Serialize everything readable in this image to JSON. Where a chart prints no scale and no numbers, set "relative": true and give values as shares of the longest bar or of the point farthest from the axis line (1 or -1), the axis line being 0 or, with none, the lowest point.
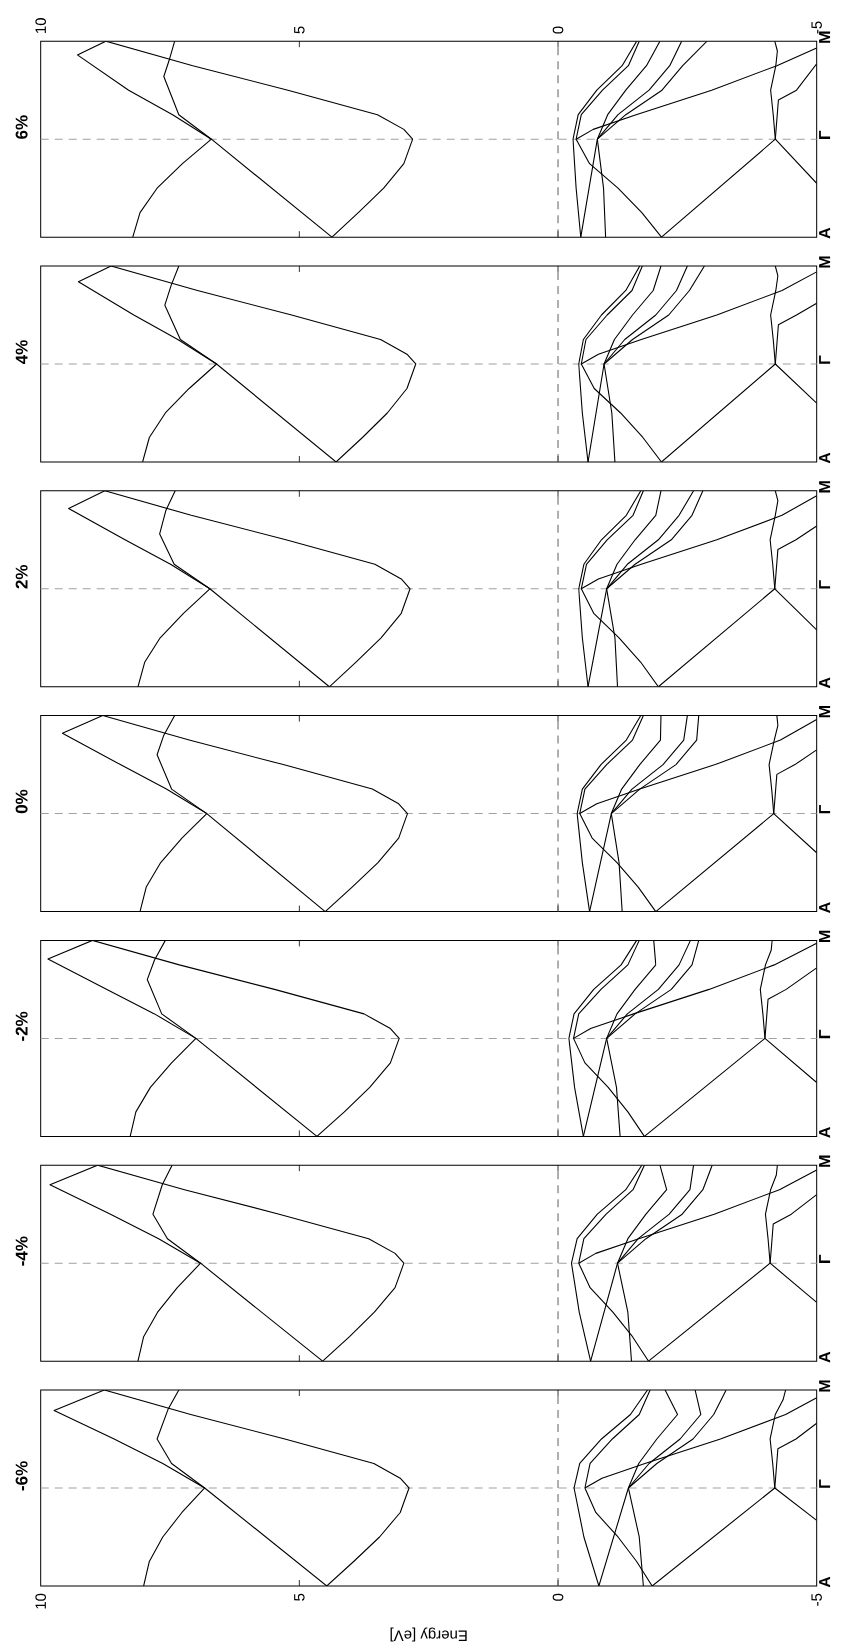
{
  "chart_data": [
    {
      "type": "line",
      "relative": true,
      "title": "6%",
      "tick_labels": "x",
      "color": "#000000",
      "xlim": [
        10,
        -5
      ],
      "xticks": [
        10,
        5,
        0,
        -5
      ],
      "annotations": [
        "A",
        "Γ",
        "M"
      ],
      "ref_lines": [
        {
          "axis": "y",
          "value": 0.5,
          "color": "#a0a0a0",
          "line_style": "dashed"
        },
        {
          "axis": "x",
          "value": 0,
          "color": "#606060",
          "line_style": "dashed"
        }
      ],
      "series": [
        {
          "values": [
            0,
            0.125,
            0.25,
            0.375,
            0.5,
            0.55,
            0.625,
            0.75,
            0.875,
            1
          ],
          "x": [
            4.37,
            3.86,
            3.37,
            2.98,
            2.81,
            2.98,
            3.49,
            5.22,
            7.06,
            8.74
          ]
        },
        {
          "values": [
            0,
            0.5,
            0.625,
            0.75,
            0.93,
            1
          ],
          "x": [
            4.37,
            6.7,
            7.45,
            8.3,
            9.29,
            8.74
          ]
        },
        {
          "values": [
            0,
            0.125,
            0.25,
            0.375,
            0.5,
            0.625,
            0.82,
            0.9,
            1
          ],
          "x": [
            8.22,
            8.08,
            7.75,
            7.26,
            6.7,
            7.33,
            7.62,
            7.52,
            7.41
          ]
        },
        {
          "values": [
            0,
            0.25,
            0.5,
            0.625,
            0.75,
            0.875,
            1
          ],
          "x": [
            -0.44,
            -0.35,
            -0.29,
            -0.39,
            -0.75,
            -1.24,
            -1.52
          ]
        },
        {
          "values": [
            0,
            0.125,
            0.25,
            0.375,
            0.5,
            0.625,
            0.75,
            0.875,
            1
          ],
          "x": [
            -2.0,
            -1.62,
            -1.16,
            -0.61,
            -0.35,
            -0.45,
            -0.86,
            -1.36,
            -1.57
          ]
        },
        {
          "values": [
            0,
            0.5,
            0.625,
            0.75,
            0.875,
            1
          ],
          "x": [
            -0.44,
            -0.76,
            -0.96,
            -1.31,
            -1.71,
            -1.97
          ]
        },
        {
          "values": [
            0,
            0.25,
            0.5,
            0.625,
            0.75,
            0.875,
            1
          ],
          "x": [
            -0.92,
            -0.88,
            -0.76,
            -1.16,
            -1.76,
            -2.16,
            -2.39
          ]
        },
        {
          "values": [
            0.5,
            0.55,
            0.625,
            0.75,
            0.875,
            0.965
          ],
          "x": [
            -0.35,
            -0.68,
            -1.51,
            -2.97,
            -4.23,
            -5
          ]
        },
        {
          "values": [
            0.5,
            0.625,
            0.75,
            0.875,
            1
          ],
          "x": [
            -0.76,
            -1.31,
            -2.01,
            -2.41,
            -2.88
          ]
        },
        {
          "values": [
            0,
            0.5,
            0.625,
            0.75,
            0.875,
            0.95,
            1
          ],
          "x": [
            -2.0,
            -4.2,
            -4.16,
            -4.11,
            -4.21,
            -4.24,
            -4.19
          ]
        },
        {
          "values": [
            0.275,
            0.5,
            0.7,
            0.75,
            0.885
          ],
          "x": [
            -5,
            -4.2,
            -4.26,
            -4.61,
            -5
          ]
        }
      ]
    },
    {
      "type": "line",
      "relative": true,
      "title": "4%",
      "tick_labels": false,
      "color": "#000000",
      "xlim": [
        10,
        -5
      ],
      "xticks": [
        10,
        5,
        0,
        -5
      ],
      "annotations": [
        "A",
        "Γ",
        "M"
      ],
      "ref_lines": [
        {
          "axis": "y",
          "value": 0.5,
          "color": "#a0a0a0",
          "line_style": "dashed"
        },
        {
          "axis": "x",
          "value": 0,
          "color": "#606060",
          "line_style": "dashed"
        }
      ],
      "series": [
        {
          "values": [
            0,
            0.125,
            0.25,
            0.375,
            0.5,
            0.55,
            0.625,
            0.75,
            0.875,
            1
          ],
          "x": [
            4.29,
            3.78,
            3.3,
            2.92,
            2.75,
            2.92,
            3.43,
            5.15,
            6.97,
            8.64
          ]
        },
        {
          "values": [
            0,
            0.5,
            0.625,
            0.75,
            0.92,
            1
          ],
          "x": [
            4.29,
            6.6,
            7.35,
            8.2,
            9.27,
            8.64
          ]
        },
        {
          "values": [
            0,
            0.125,
            0.25,
            0.375,
            0.5,
            0.625,
            0.8,
            0.9,
            1
          ],
          "x": [
            8.03,
            7.9,
            7.59,
            7.13,
            6.6,
            7.3,
            7.6,
            7.48,
            7.33
          ]
        },
        {
          "values": [
            0,
            0.25,
            0.5,
            0.625,
            0.75,
            0.875,
            1
          ],
          "x": [
            -0.58,
            -0.47,
            -0.4,
            -0.49,
            -0.84,
            -1.31,
            -1.58
          ]
        },
        {
          "values": [
            0,
            0.125,
            0.25,
            0.375,
            0.5,
            0.625,
            0.75,
            0.875,
            1
          ],
          "x": [
            -2.0,
            -1.64,
            -1.21,
            -0.7,
            -0.45,
            -0.54,
            -0.95,
            -1.43,
            -1.63
          ]
        },
        {
          "values": [
            0,
            0.5,
            0.625,
            0.75,
            0.875,
            1
          ],
          "x": [
            -0.58,
            -0.89,
            -1.09,
            -1.44,
            -1.84,
            -1.99
          ]
        },
        {
          "values": [
            0,
            0.25,
            0.5,
            0.625,
            0.75,
            0.875,
            1
          ],
          "x": [
            -1.1,
            -1.04,
            -0.89,
            -1.29,
            -1.89,
            -2.29,
            -2.5
          ]
        },
        {
          "values": [
            0.5,
            0.55,
            0.625,
            0.75,
            0.875,
            0.97
          ],
          "x": [
            -0.45,
            -0.78,
            -1.61,
            -3.07,
            -4.33,
            -5
          ]
        },
        {
          "values": [
            0.5,
            0.625,
            0.75,
            0.875,
            1
          ],
          "x": [
            -0.89,
            -1.44,
            -2.14,
            -2.54,
            -2.83
          ]
        },
        {
          "values": [
            0,
            0.5,
            0.625,
            0.75,
            0.875,
            0.95,
            1
          ],
          "x": [
            -2.0,
            -4.2,
            -4.16,
            -4.11,
            -4.21,
            -4.25,
            -4.2
          ]
        },
        {
          "values": [
            0.3,
            0.5,
            0.7,
            0.75,
            0.81
          ],
          "x": [
            -5,
            -4.2,
            -4.26,
            -4.61,
            -5
          ]
        }
      ]
    },
    {
      "type": "line",
      "relative": true,
      "title": "2%",
      "tick_labels": false,
      "color": "#000000",
      "xlim": [
        10,
        -5
      ],
      "xticks": [
        10,
        5,
        0,
        -5
      ],
      "annotations": [
        "A",
        "Γ",
        "M"
      ],
      "ref_lines": [
        {
          "axis": "y",
          "value": 0.5,
          "color": "#a0a0a0",
          "line_style": "dashed"
        },
        {
          "axis": "x",
          "value": 0,
          "color": "#606060",
          "line_style": "dashed"
        }
      ],
      "series": [
        {
          "values": [
            0,
            0.125,
            0.25,
            0.375,
            0.5,
            0.55,
            0.625,
            0.75,
            0.875,
            1
          ],
          "x": [
            4.42,
            3.91,
            3.42,
            3.03,
            2.86,
            3.03,
            3.54,
            5.26,
            7.09,
            8.76
          ]
        },
        {
          "values": [
            0,
            0.5,
            0.625,
            0.75,
            0.91,
            1
          ],
          "x": [
            4.42,
            6.73,
            7.49,
            8.37,
            9.46,
            8.76
          ]
        },
        {
          "values": [
            0,
            0.125,
            0.25,
            0.375,
            0.5,
            0.625,
            0.78,
            0.9,
            1
          ],
          "x": [
            8.12,
            7.99,
            7.69,
            7.24,
            6.73,
            7.42,
            7.7,
            7.58,
            7.4
          ]
        },
        {
          "values": [
            0,
            0.25,
            0.5,
            0.625,
            0.75,
            0.875,
            1
          ],
          "x": [
            -0.58,
            -0.47,
            -0.4,
            -0.5,
            -0.84,
            -1.32,
            -1.6
          ]
        },
        {
          "values": [
            0,
            0.125,
            0.25,
            0.375,
            0.5,
            0.625,
            0.75,
            0.875,
            1
          ],
          "x": [
            -1.94,
            -1.6,
            -1.18,
            -0.69,
            -0.45,
            -0.55,
            -0.95,
            -1.45,
            -1.65
          ]
        },
        {
          "values": [
            0,
            0.5,
            0.625,
            0.75,
            0.875,
            1
          ],
          "x": [
            -0.58,
            -0.94,
            -1.14,
            -1.49,
            -1.89,
            -1.99
          ]
        },
        {
          "values": [
            0,
            0.25,
            0.5,
            0.625,
            0.75,
            0.875,
            1
          ],
          "x": [
            -1.15,
            -1.1,
            -0.94,
            -1.34,
            -1.94,
            -2.34,
            -2.62
          ]
        },
        {
          "values": [
            0.5,
            0.55,
            0.625,
            0.75,
            0.875,
            0.975
          ],
          "x": [
            -0.45,
            -0.78,
            -1.61,
            -3.07,
            -4.33,
            -5
          ]
        },
        {
          "values": [
            0.5,
            0.625,
            0.75,
            0.875,
            1
          ],
          "x": [
            -0.94,
            -1.49,
            -2.19,
            -2.59,
            -2.8
          ]
        },
        {
          "values": [
            0,
            0.5,
            0.625,
            0.75,
            0.875,
            0.95,
            1
          ],
          "x": [
            -1.94,
            -4.19,
            -4.15,
            -4.1,
            -4.2,
            -4.25,
            -4.2
          ]
        },
        {
          "values": [
            0.29,
            0.5,
            0.7,
            0.75,
            0.82
          ],
          "x": [
            -5,
            -4.19,
            -4.25,
            -4.6,
            -5
          ]
        }
      ]
    },
    {
      "type": "line",
      "relative": true,
      "title": "0%",
      "tick_labels": false,
      "color": "#000000",
      "xlim": [
        10,
        -5
      ],
      "xticks": [
        10,
        5,
        0,
        -5
      ],
      "annotations": [
        "A",
        "Γ",
        "M"
      ],
      "ref_lines": [
        {
          "axis": "y",
          "value": 0.5,
          "color": "#a0a0a0",
          "line_style": "dashed"
        },
        {
          "axis": "x",
          "value": 0,
          "color": "#606060",
          "line_style": "dashed"
        }
      ],
      "series": [
        {
          "values": [
            0,
            0.125,
            0.25,
            0.375,
            0.5,
            0.55,
            0.625,
            0.75,
            0.875,
            1
          ],
          "x": [
            4.5,
            3.98,
            3.48,
            3.08,
            2.91,
            3.08,
            3.59,
            5.31,
            7.13,
            8.8
          ]
        },
        {
          "values": [
            0,
            0.5,
            0.625,
            0.75,
            0.91,
            1
          ],
          "x": [
            4.5,
            6.79,
            7.57,
            8.46,
            9.58,
            8.8
          ]
        },
        {
          "values": [
            0,
            0.125,
            0.25,
            0.375,
            0.5,
            0.625,
            0.8,
            0.9,
            1
          ],
          "x": [
            8.08,
            7.96,
            7.68,
            7.27,
            6.79,
            7.47,
            7.75,
            7.62,
            7.41
          ]
        },
        {
          "values": [
            0,
            0.25,
            0.5,
            0.625,
            0.75,
            0.875,
            1
          ],
          "x": [
            -0.61,
            -0.47,
            -0.37,
            -0.47,
            -0.83,
            -1.32,
            -1.6
          ]
        },
        {
          "values": [
            0,
            0.125,
            0.25,
            0.375,
            0.5,
            0.625,
            0.75,
            0.875,
            1
          ],
          "x": [
            -1.89,
            -1.55,
            -1.14,
            -0.66,
            -0.42,
            -0.52,
            -0.94,
            -1.44,
            -1.65
          ]
        },
        {
          "values": [
            0,
            0.5,
            0.625,
            0.75,
            0.875,
            1
          ],
          "x": [
            -0.61,
            -1.03,
            -1.23,
            -1.58,
            -1.98,
            -1.99
          ]
        },
        {
          "values": [
            0,
            0.25,
            0.5,
            0.625,
            0.75,
            0.875,
            1
          ],
          "x": [
            -1.24,
            -1.18,
            -1.03,
            -1.43,
            -2.03,
            -2.43,
            -2.5
          ]
        },
        {
          "values": [
            0.5,
            0.55,
            0.625,
            0.75,
            0.875,
            0.98
          ],
          "x": [
            -0.42,
            -0.75,
            -1.58,
            -3.04,
            -4.3,
            -5
          ]
        },
        {
          "values": [
            0.5,
            0.625,
            0.75,
            0.875,
            1
          ],
          "x": [
            -1.03,
            -1.58,
            -2.28,
            -2.68,
            -2.72
          ]
        },
        {
          "values": [
            0,
            0.5,
            0.625,
            0.75,
            0.875,
            0.95,
            1
          ],
          "x": [
            -1.89,
            -4.17,
            -4.13,
            -4.08,
            -4.18,
            -4.25,
            -4.23
          ]
        },
        {
          "values": [
            0.3,
            0.5,
            0.7,
            0.75,
            0.825
          ],
          "x": [
            -5,
            -4.17,
            -4.23,
            -4.58,
            -5
          ]
        }
      ]
    },
    {
      "type": "line",
      "relative": true,
      "title": "-2%",
      "tick_labels": false,
      "color": "#000000",
      "xlim": [
        10,
        -5
      ],
      "xticks": [
        10,
        5,
        0,
        -5
      ],
      "annotations": [
        "A",
        "Γ",
        "M"
      ],
      "ref_lines": [
        {
          "axis": "y",
          "value": 0.5,
          "color": "#a0a0a0",
          "line_style": "dashed"
        },
        {
          "axis": "x",
          "value": 0,
          "color": "#606060",
          "line_style": "dashed"
        }
      ],
      "series": [
        {
          "values": [
            0,
            0.125,
            0.25,
            0.375,
            0.5,
            0.55,
            0.625,
            0.75,
            0.875,
            1
          ],
          "x": [
            4.66,
            4.13,
            3.64,
            3.24,
            3.07,
            3.24,
            3.75,
            5.48,
            7.32,
            9.0
          ]
        },
        {
          "values": [
            0,
            0.5,
            0.625,
            0.75,
            0.905,
            1
          ],
          "x": [
            4.66,
            7.0,
            7.8,
            8.72,
            9.86,
            9.0
          ]
        },
        {
          "values": [
            0,
            0.125,
            0.25,
            0.375,
            0.5,
            0.625,
            0.8,
            0.9,
            1
          ],
          "x": [
            8.27,
            8.16,
            7.88,
            7.47,
            7.0,
            7.66,
            7.94,
            7.8,
            7.59
          ]
        },
        {
          "values": [
            0,
            0.25,
            0.5,
            0.625,
            0.75,
            0.875,
            1
          ],
          "x": [
            -0.49,
            -0.32,
            -0.21,
            -0.31,
            -0.69,
            -1.22,
            -1.52
          ]
        },
        {
          "values": [
            0,
            0.125,
            0.25,
            0.375,
            0.5,
            0.625,
            0.75,
            0.875,
            1
          ],
          "x": [
            -1.67,
            -1.35,
            -0.97,
            -0.52,
            -0.3,
            -0.4,
            -0.83,
            -1.35,
            -1.57
          ]
        },
        {
          "values": [
            0,
            0.5,
            0.625,
            0.75,
            0.875,
            1
          ],
          "x": [
            -0.49,
            -0.94,
            -1.14,
            -1.49,
            -1.89,
            -1.85
          ]
        },
        {
          "values": [
            0,
            0.25,
            0.5,
            0.625,
            0.75,
            0.875,
            1
          ],
          "x": [
            -1.2,
            -1.13,
            -0.94,
            -1.34,
            -1.94,
            -2.34,
            -2.56
          ]
        },
        {
          "values": [
            0.5,
            0.55,
            0.625,
            0.75,
            0.875,
            0.985
          ],
          "x": [
            -0.3,
            -0.63,
            -1.46,
            -2.92,
            -4.18,
            -5
          ]
        },
        {
          "values": [
            0.5,
            0.625,
            0.75,
            0.875,
            1
          ],
          "x": [
            -0.94,
            -1.49,
            -2.19,
            -2.59,
            -2.72
          ]
        },
        {
          "values": [
            0,
            0.5,
            0.625,
            0.75,
            0.875,
            0.95,
            1
          ],
          "x": [
            -1.67,
            -4.0,
            -3.96,
            -3.91,
            -4.01,
            -4.12,
            -4.14
          ]
        },
        {
          "values": [
            0.275,
            0.5,
            0.7,
            0.75,
            0.86
          ],
          "x": [
            -5,
            -4.0,
            -4.06,
            -4.41,
            -5
          ]
        }
      ]
    },
    {
      "type": "line",
      "relative": true,
      "title": "-4%",
      "tick_labels": false,
      "color": "#000000",
      "xlim": [
        10,
        -5
      ],
      "xticks": [
        10,
        5,
        0,
        -5
      ],
      "annotations": [
        "A",
        "Γ",
        "M"
      ],
      "ref_lines": [
        {
          "axis": "y",
          "value": 0.5,
          "color": "#a0a0a0",
          "line_style": "dashed"
        },
        {
          "axis": "x",
          "value": 0,
          "color": "#606060",
          "line_style": "dashed"
        }
      ],
      "series": [
        {
          "values": [
            0,
            0.125,
            0.25,
            0.375,
            0.5,
            0.55,
            0.625,
            0.75,
            0.875,
            1
          ],
          "x": [
            4.55,
            4.03,
            3.55,
            3.15,
            2.98,
            3.15,
            3.66,
            5.39,
            7.22,
            8.9
          ]
        },
        {
          "values": [
            0,
            0.5,
            0.625,
            0.75,
            0.9,
            1
          ],
          "x": [
            4.55,
            6.91,
            7.72,
            8.65,
            9.82,
            8.9
          ]
        },
        {
          "values": [
            0,
            0.125,
            0.25,
            0.375,
            0.5,
            0.625,
            0.75,
            0.9,
            1
          ],
          "x": [
            8.12,
            8.01,
            7.74,
            7.36,
            6.91,
            7.55,
            7.83,
            7.65,
            7.46
          ]
        },
        {
          "values": [
            0,
            0.25,
            0.5,
            0.625,
            0.75,
            0.875,
            1
          ],
          "x": [
            -0.63,
            -0.41,
            -0.26,
            -0.37,
            -0.76,
            -1.31,
            -1.62
          ]
        },
        {
          "values": [
            0,
            0.125,
            0.25,
            0.375,
            0.5,
            0.625,
            0.75,
            0.875,
            1
          ],
          "x": [
            -1.75,
            -1.44,
            -1.06,
            -0.62,
            -0.4,
            -0.5,
            -0.93,
            -1.45,
            -1.67
          ]
        },
        {
          "values": [
            0,
            0.5,
            0.625,
            0.75,
            0.875,
            1
          ],
          "x": [
            -0.63,
            -1.15,
            -1.35,
            -1.7,
            -2.1,
            -1.97
          ]
        },
        {
          "values": [
            0,
            0.25,
            0.5,
            0.625,
            0.75,
            0.875,
            1
          ],
          "x": [
            -1.42,
            -1.35,
            -1.15,
            -1.55,
            -2.15,
            -2.55,
            -2.62
          ]
        },
        {
          "values": [
            0.5,
            0.55,
            0.625,
            0.75,
            0.875,
            0.975
          ],
          "x": [
            -0.4,
            -0.73,
            -1.56,
            -3.02,
            -4.28,
            -5
          ]
        },
        {
          "values": [
            0.5,
            0.625,
            0.75,
            0.875,
            1
          ],
          "x": [
            -1.15,
            -1.7,
            -2.4,
            -2.8,
            -2.98
          ]
        },
        {
          "values": [
            0,
            0.5,
            0.625,
            0.75,
            0.875,
            0.95,
            1
          ],
          "x": [
            -1.75,
            -4.1,
            -4.06,
            -4.01,
            -4.11,
            -4.22,
            -4.24
          ]
        },
        {
          "values": [
            0.3,
            0.5,
            0.7,
            0.75,
            0.85
          ],
          "x": [
            -5,
            -4.1,
            -4.16,
            -4.51,
            -5
          ]
        }
      ]
    },
    {
      "type": "line",
      "relative": true,
      "title": "-6%",
      "xlabel": "Energy [eV]",
      "tick_labels": "x",
      "color": "#000000",
      "xlim": [
        10,
        -5
      ],
      "xticks": [
        10,
        5,
        0,
        -5
      ],
      "annotations": [
        "A",
        "Γ",
        "M"
      ],
      "ref_lines": [
        {
          "axis": "y",
          "value": 0.5,
          "color": "#a0a0a0",
          "line_style": "dashed"
        },
        {
          "axis": "x",
          "value": 0,
          "color": "#606060",
          "line_style": "dashed"
        }
      ],
      "series": [
        {
          "values": [
            0,
            0.125,
            0.25,
            0.375,
            0.5,
            0.55,
            0.625,
            0.75,
            0.875,
            1
          ],
          "x": [
            4.47,
            3.95,
            3.45,
            3.05,
            2.88,
            3.05,
            3.56,
            5.28,
            7.1,
            8.77
          ]
        },
        {
          "values": [
            0,
            0.5,
            0.625,
            0.75,
            0.895,
            1
          ],
          "x": [
            4.47,
            6.83,
            7.64,
            8.58,
            9.74,
            8.77
          ]
        },
        {
          "values": [
            0,
            0.125,
            0.25,
            0.375,
            0.5,
            0.625,
            0.75,
            0.9,
            1
          ],
          "x": [
            8.01,
            7.9,
            7.64,
            7.27,
            6.83,
            7.47,
            7.75,
            7.54,
            7.33
          ]
        },
        {
          "values": [
            0,
            0.25,
            0.5,
            0.625,
            0.75,
            0.875,
            1
          ],
          "x": [
            -0.79,
            -0.5,
            -0.31,
            -0.42,
            -0.84,
            -1.4,
            -1.73
          ]
        },
        {
          "values": [
            0,
            0.125,
            0.25,
            0.375,
            0.5,
            0.625,
            0.75,
            0.875,
            1
          ],
          "x": [
            -1.82,
            -1.52,
            -1.16,
            -0.73,
            -0.52,
            -0.62,
            -1.05,
            -1.57,
            -1.78
          ]
        },
        {
          "values": [
            0,
            0.5,
            0.625,
            0.75,
            0.875,
            1
          ],
          "x": [
            -0.79,
            -1.36,
            -1.56,
            -1.91,
            -2.31,
            -2.07
          ]
        },
        {
          "values": [
            0,
            0.25,
            0.5,
            0.625,
            0.75,
            0.875,
            1
          ],
          "x": [
            -1.65,
            -1.57,
            -1.36,
            -1.76,
            -2.36,
            -2.76,
            -2.65
          ]
        },
        {
          "values": [
            0.5,
            0.55,
            0.625,
            0.75,
            0.875,
            0.96
          ],
          "x": [
            -0.52,
            -0.85,
            -1.68,
            -3.14,
            -4.4,
            -5
          ]
        },
        {
          "values": [
            0.5,
            0.625,
            0.75,
            0.875,
            1
          ],
          "x": [
            -1.36,
            -1.91,
            -2.61,
            -3.01,
            -3.25
          ]
        },
        {
          "values": [
            0,
            0.5,
            0.625,
            0.75,
            0.875,
            0.95,
            1
          ],
          "x": [
            -1.82,
            -4.19,
            -4.15,
            -4.1,
            -4.2,
            -4.35,
            -4.4
          ]
        },
        {
          "values": [
            0.335,
            0.5,
            0.7,
            0.75,
            0.83
          ],
          "x": [
            -5,
            -4.19,
            -4.25,
            -4.6,
            -5
          ]
        }
      ]
    }
  ]
}
